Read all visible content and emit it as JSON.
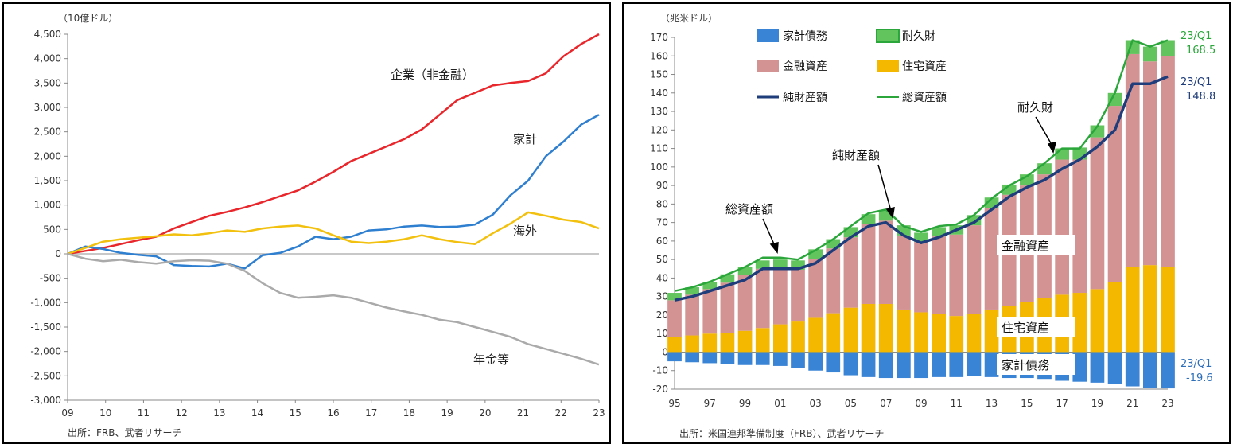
{
  "chart_data": [
    {
      "type": "line",
      "unit_label": "（10億ドル）",
      "source": "出所：FRB、武者リサーチ",
      "ylim": [
        -3000,
        4500
      ],
      "y_ticks": [
        "4,500",
        "4,000",
        "3,500",
        "3,000",
        "2,500",
        "2,000",
        "1,500",
        "1,000",
        "500",
        "0",
        "-500",
        "-1,000",
        "-1,500",
        "-2,000",
        "-2,500",
        "-3,000"
      ],
      "x_ticks": [
        "09",
        "10",
        "11",
        "12",
        "13",
        "14",
        "15",
        "16",
        "17",
        "18",
        "19",
        "20",
        "21",
        "22",
        "23"
      ],
      "series": [
        {
          "name": "企業（非金融）",
          "color": "#e8262b",
          "values": [
            0,
            60,
            120,
            200,
            280,
            350,
            520,
            650,
            780,
            860,
            950,
            1060,
            1180,
            1300,
            1480,
            1680,
            1900,
            2050,
            2200,
            2350,
            2550,
            2850,
            3150,
            3300,
            3450,
            3500,
            3540,
            3700,
            4050,
            4300,
            4500
          ]
        },
        {
          "name": "家計",
          "color": "#2f7fd0",
          "values": [
            0,
            150,
            100,
            20,
            -20,
            -50,
            -230,
            -250,
            -260,
            -200,
            -300,
            -30,
            20,
            150,
            350,
            300,
            350,
            480,
            500,
            560,
            580,
            550,
            560,
            600,
            800,
            1200,
            1500,
            2000,
            2300,
            2650,
            2850
          ]
        },
        {
          "name": "海外",
          "color": "#f2c00f",
          "values": [
            0,
            120,
            250,
            300,
            330,
            360,
            400,
            380,
            420,
            480,
            450,
            520,
            560,
            580,
            520,
            380,
            250,
            220,
            250,
            300,
            380,
            300,
            240,
            200,
            420,
            620,
            850,
            780,
            700,
            650,
            520
          ]
        },
        {
          "name": "年金等",
          "color": "#aaaaaa",
          "values": [
            0,
            -100,
            -150,
            -120,
            -170,
            -200,
            -150,
            -130,
            -140,
            -200,
            -350,
            -600,
            -800,
            -900,
            -880,
            -850,
            -900,
            -1000,
            -1100,
            -1180,
            -1250,
            -1350,
            -1400,
            -1500,
            -1600,
            -1700,
            -1850,
            -1950,
            -2050,
            -2150,
            -2270
          ]
        }
      ]
    },
    {
      "type": "bar",
      "unit_label": "（兆米ドル）",
      "source": "出所：米国連邦準備制度（FRB）、武者リサーチ",
      "ylim": [
        -20,
        170
      ],
      "y_ticks": [
        "170",
        "160",
        "150",
        "140",
        "130",
        "120",
        "110",
        "100",
        "90",
        "80",
        "70",
        "60",
        "50",
        "40",
        "30",
        "20",
        "10",
        "0",
        "-10",
        "-20"
      ],
      "x_ticks": [
        "95",
        "97",
        "99",
        "01",
        "03",
        "05",
        "07",
        "09",
        "11",
        "13",
        "15",
        "17",
        "19",
        "21",
        "23"
      ],
      "legend": [
        "家計債務",
        "耐久財",
        "金融資産",
        "住宅資産",
        "純財産額",
        "総資産額"
      ],
      "x_years": [
        1995,
        1996,
        1997,
        1998,
        1999,
        2000,
        2001,
        2002,
        2003,
        2004,
        2005,
        2006,
        2007,
        2008,
        2009,
        2010,
        2011,
        2012,
        2013,
        2014,
        2015,
        2016,
        2017,
        2018,
        2019,
        2020,
        2021,
        2022,
        2023
      ],
      "series": [
        {
          "name": "住宅資産",
          "color": "#f5b800",
          "values": [
            8,
            9,
            10,
            10.5,
            11.5,
            13,
            15,
            16.5,
            18.5,
            21,
            24,
            26,
            26,
            23,
            21.5,
            20.5,
            19.5,
            20.5,
            23,
            25,
            27,
            29,
            31,
            32,
            34,
            38,
            46,
            47,
            46
          ]
        },
        {
          "name": "金融資産",
          "color": "#d49393",
          "values": [
            20,
            22,
            24,
            27,
            30,
            32,
            30,
            28,
            32,
            35,
            38,
            43,
            45,
            40,
            38,
            42,
            44,
            48,
            55,
            60,
            63,
            67,
            73,
            72,
            82,
            95,
            115,
            110,
            114
          ]
        },
        {
          "name": "耐久財",
          "color": "#62c45d",
          "values": [
            4,
            4,
            4,
            4.5,
            4.5,
            4.5,
            5,
            5,
            5,
            5,
            5.5,
            5.5,
            5.5,
            5.5,
            5,
            5,
            5,
            5.5,
            5.5,
            5.5,
            6,
            6,
            6,
            6.5,
            6.5,
            7,
            7.5,
            8,
            8.5
          ]
        },
        {
          "name": "家計債務",
          "color": "#3a84d5",
          "values": [
            -5,
            -5.5,
            -6,
            -6.5,
            -7,
            -7,
            -7.5,
            -8.5,
            -10,
            -11,
            -12.5,
            -13.5,
            -14,
            -14,
            -14,
            -13.5,
            -13.5,
            -13,
            -13.5,
            -14,
            -14,
            -14.5,
            -15.5,
            -16,
            -16.5,
            -17,
            -18.5,
            -19.5,
            -19.6
          ]
        },
        {
          "name": "純財産額",
          "color": "#1f3d7a",
          "values": [
            28,
            30,
            33,
            36,
            39,
            45,
            45,
            45,
            48,
            55,
            62,
            68,
            70,
            63,
            59,
            62,
            66,
            70,
            77,
            84,
            89,
            93,
            99,
            104,
            111,
            120,
            145,
            145,
            148.8
          ]
        },
        {
          "name": "総資産額",
          "color": "#2aa63a",
          "values": [
            33,
            35,
            38,
            42,
            46,
            51,
            51,
            50,
            55,
            61,
            68,
            75,
            77,
            68,
            65,
            68,
            69,
            74,
            83,
            90,
            95,
            102,
            110,
            110,
            122,
            140,
            168.5,
            165,
            168.5
          ]
        }
      ],
      "annotations": {
        "total_tag": "23/Q1",
        "total_value": "168.5",
        "net_tag": "23/Q1",
        "net_value": "148.8",
        "debt_tag": "23/Q1",
        "debt_value": "-19.6",
        "label_durable": "耐久財",
        "label_net": "純財産額",
        "label_total": "総資産額",
        "label_financial": "金融資産",
        "label_housing": "住宅資産",
        "label_debt": "家計債務"
      }
    }
  ]
}
